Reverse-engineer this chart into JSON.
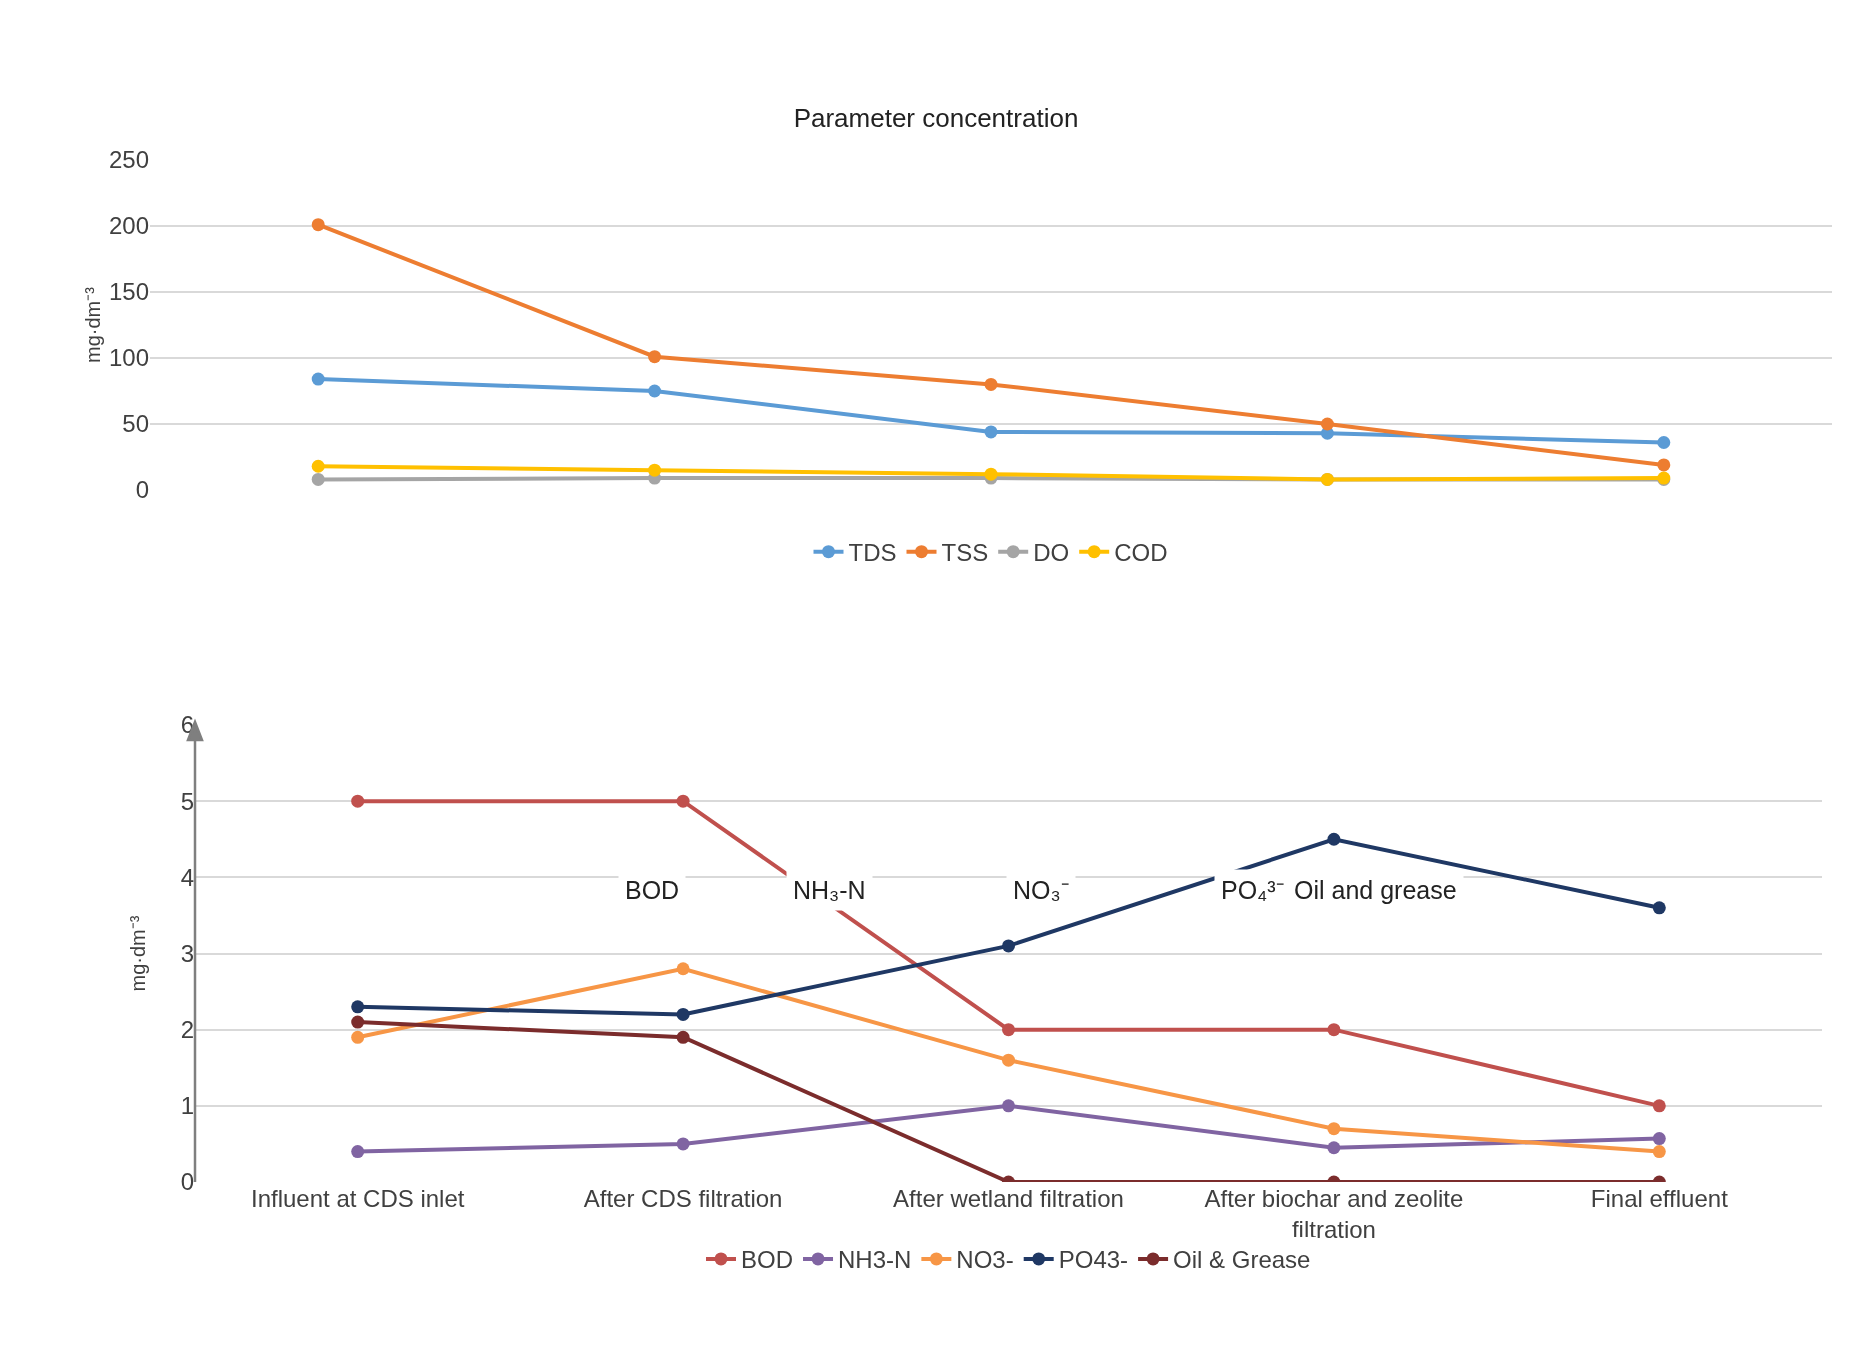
{
  "chart_data": [
    {
      "type": "line",
      "title": "Parameter concentration",
      "ylabel": "mg·dm⁻³",
      "categories": [
        null,
        null,
        null,
        null,
        null
      ],
      "ylim": [
        0,
        250
      ],
      "yticks": [
        0,
        50,
        100,
        150,
        200,
        250
      ],
      "grid": "y",
      "legend": "bottom",
      "marker": "circle",
      "tick_labels": "y",
      "series": [
        {
          "name": "TDS",
          "color": "#5b9bd5",
          "values": [
            84,
            75,
            44,
            43,
            36
          ]
        },
        {
          "name": "TSS",
          "color": "#ed7d31",
          "values": [
            201,
            101,
            80,
            50,
            19
          ]
        },
        {
          "name": "DO",
          "color": "#a5a5a5",
          "values": [
            8,
            9,
            9,
            8,
            8
          ]
        },
        {
          "name": "COD",
          "color": "#ffc000",
          "values": [
            18,
            15,
            12,
            8,
            9
          ]
        }
      ]
    },
    {
      "type": "line",
      "ylabel": "mg·dm⁻³",
      "categories": [
        "Influent at CDS inlet",
        "After CDS filtration",
        "After wetland filtration",
        "After biochar and zeolite filtration",
        "Final effluent"
      ],
      "ylim": [
        0,
        6
      ],
      "yticks": [
        0,
        1,
        2,
        3,
        4,
        5,
        6
      ],
      "grid": "y",
      "legend": "bottom",
      "marker": "circle",
      "annotations": [
        "BOD",
        "NH₃-N",
        "NO₃⁻",
        "PO₄³⁻",
        "Oil and grease"
      ],
      "series": [
        {
          "name": "BOD",
          "color": "#c0504d",
          "values": [
            5,
            5,
            2,
            2,
            1
          ]
        },
        {
          "name": "NH3-N",
          "color": "#8064a2",
          "values": [
            0.4,
            0.5,
            1.0,
            0.45,
            0.57
          ]
        },
        {
          "name": "NO3-",
          "color": "#f79646",
          "values": [
            1.9,
            2.8,
            1.6,
            0.7,
            0.4
          ]
        },
        {
          "name": "PO43-",
          "color": "#1f3864",
          "values": [
            2.3,
            2.2,
            3.1,
            4.5,
            3.6
          ]
        },
        {
          "name": "Oil & Grease",
          "color": "#7b2c2c",
          "values": [
            2.1,
            1.9,
            0,
            0,
            0
          ]
        }
      ]
    }
  ]
}
